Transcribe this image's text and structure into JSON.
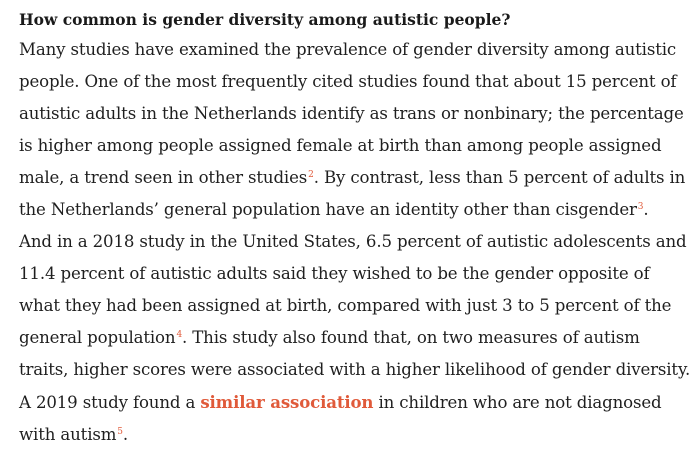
{
  "article": {
    "heading": "How common is gender diversity among autistic people?",
    "lines": {
      "l1": "Many studies have examined the prevalence of gender diversity among autistic",
      "l2": "people. One of the most frequently cited studies found that about 15 percent of",
      "l3": "autistic adults in the Netherlands identify as trans or nonbinary; the percentage",
      "l4": "is higher among people assigned female at birth than among people assigned",
      "l5a": "male, a trend seen in other studies",
      "l5b": ". By contrast, less than 5 percent of adults in",
      "l6a": "the Netherlands’ general population have an identity other than cisgender",
      "l6b": ".",
      "l7": "And in a 2018 study in the United States, 6.5 percent of autistic adolescents and",
      "l8": "11.4 percent of autistic adults said they wished to be the gender opposite of",
      "l9": "what they had been assigned at birth, compared with just 3 to 5 percent of the",
      "l10a": "general population",
      "l10b": ". This study also found that, on two measures of autism",
      "l11": "traits, higher scores were associated with a higher likelihood of gender diversity.",
      "l12a": "A 2019 study found a ",
      "l12link": "similar association",
      "l12b": " in children who are not diagnosed",
      "l13a": "with autism",
      "l13b": "."
    },
    "refs": {
      "r2": "2",
      "r3": "3",
      "r4": "4",
      "r5": "5"
    }
  },
  "colors": {
    "text": "#1f1f1f",
    "accent": "#e05a3a"
  }
}
